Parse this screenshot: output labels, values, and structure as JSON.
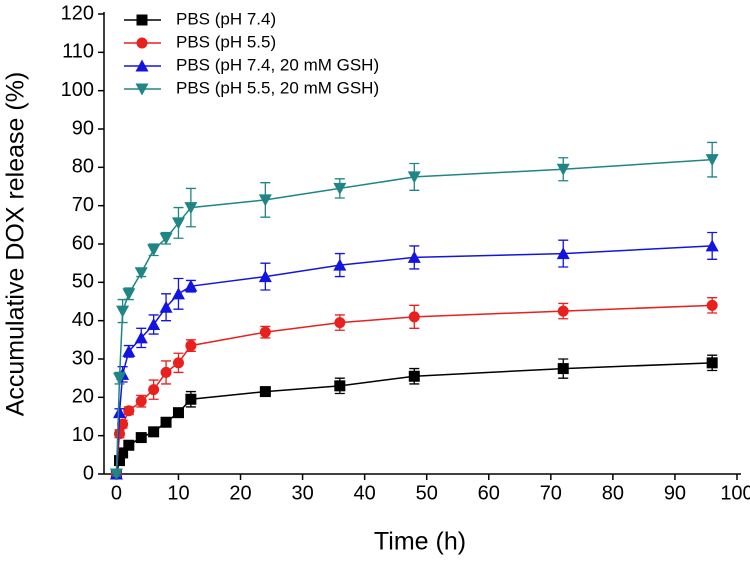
{
  "chart_data": {
    "type": "line",
    "xlabel": "Time (h)",
    "ylabel": "Accumulative DOX release (%)",
    "xlim": [
      -2,
      100
    ],
    "xticks": [
      0,
      10,
      20,
      30,
      40,
      50,
      60,
      70,
      80,
      90,
      100
    ],
    "ylim": [
      0,
      120
    ],
    "yticks": [
      0,
      10,
      20,
      30,
      40,
      50,
      60,
      70,
      80,
      90,
      100,
      110,
      120
    ],
    "legend": "upper left",
    "grid": false,
    "x": [
      0,
      0.5,
      1,
      2,
      4,
      6,
      8,
      10,
      12,
      24,
      36,
      48,
      72,
      96
    ],
    "series": [
      {
        "name": "PBS (pH 7.4)",
        "color": "#000000",
        "marker": "square",
        "values": [
          0,
          3.5,
          5.5,
          7.5,
          9.5,
          11,
          13.5,
          16,
          19.5,
          21.5,
          23,
          25.5,
          27.5,
          29
        ],
        "errors": [
          0.5,
          0.8,
          0.8,
          0.8,
          0.8,
          0.8,
          1,
          1,
          2,
          1,
          2,
          2,
          2.5,
          2
        ]
      },
      {
        "name": "PBS (pH 5.5)",
        "color": "#e8201e",
        "marker": "circle",
        "values": [
          0,
          10.5,
          13,
          16.5,
          19,
          22,
          26.5,
          29,
          33.5,
          37,
          39.5,
          41,
          42.5,
          44
        ],
        "errors": [
          0.5,
          1,
          1,
          1,
          1.5,
          2.5,
          3,
          2.5,
          1.5,
          1.5,
          2,
          3,
          2,
          2
        ]
      },
      {
        "name": "PBS (pH 7.4, 20 mM GSH)",
        "color": "#1414e0",
        "marker": "triangle-up",
        "values": [
          0,
          16,
          26,
          32,
          35.5,
          39,
          43.5,
          47,
          49,
          51.5,
          54.5,
          56.5,
          57.5,
          59.5
        ],
        "errors": [
          0.5,
          1,
          2,
          1.5,
          2.5,
          2.5,
          3.5,
          4,
          1.5,
          3.5,
          3,
          3,
          3.5,
          3.5
        ]
      },
      {
        "name": "PBS (pH 5.5, 20 mM GSH)",
        "color": "#1f8585",
        "marker": "triangle-down",
        "values": [
          0,
          25,
          42.5,
          47,
          52.5,
          58.5,
          61.5,
          65.5,
          69.5,
          71.5,
          74.5,
          77.5,
          79.5,
          82
        ],
        "errors": [
          0.5,
          1.5,
          3,
          1.5,
          1,
          1.5,
          1.5,
          4,
          5,
          4.5,
          2.5,
          3.5,
          3,
          4.5
        ]
      }
    ]
  }
}
